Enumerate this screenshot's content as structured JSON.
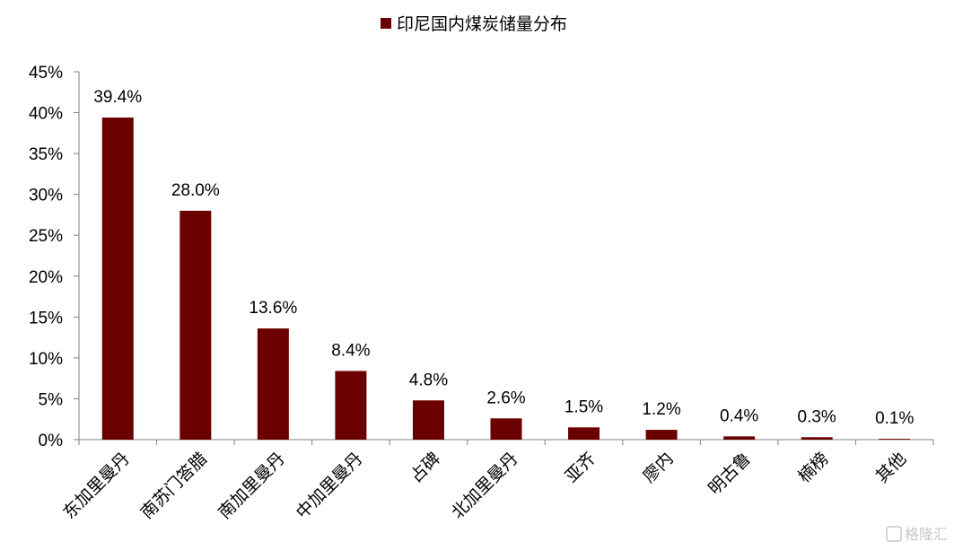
{
  "chart_data": {
    "type": "bar",
    "legend": {
      "label": "印尼国内煤炭储量分布",
      "position": "top"
    },
    "categories": [
      "东加里曼丹",
      "南苏门答腊",
      "南加里曼丹",
      "中加里曼丹",
      "占碑",
      "北加里曼丹",
      "亚齐",
      "廖内",
      "明古鲁",
      "楠榜",
      "其他"
    ],
    "series": [
      {
        "name": "印尼国内煤炭储量分布",
        "values": [
          39.4,
          28.0,
          13.6,
          8.4,
          4.8,
          2.6,
          1.5,
          1.2,
          0.4,
          0.3,
          0.1
        ]
      }
    ],
    "data_labels": [
      "39.4%",
      "28.0%",
      "13.6%",
      "8.4%",
      "4.8%",
      "2.6%",
      "1.5%",
      "1.2%",
      "0.4%",
      "0.3%",
      "0.1%"
    ],
    "ylim": [
      0,
      45
    ],
    "y_ticks": [
      "0%",
      "5%",
      "10%",
      "15%",
      "20%",
      "25%",
      "30%",
      "35%",
      "40%",
      "45%"
    ],
    "grid": false,
    "bar_color": "#6b0000"
  },
  "watermark": {
    "text": "格隆汇"
  }
}
